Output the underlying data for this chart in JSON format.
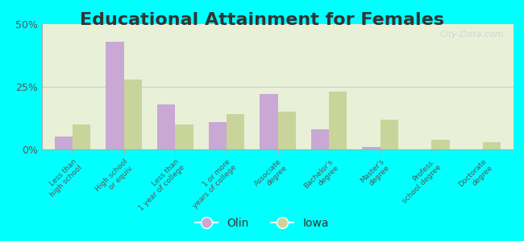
{
  "title": "Educational Attainment for Females",
  "categories": [
    "Less than\nhigh school",
    "High school\nor equiv.",
    "Less than\n1 year of college",
    "1 or more\nyears of college",
    "Associate\ndegree",
    "Bachelor's\ndegree",
    "Master's\ndegree",
    "Profess.\nschool degree",
    "Doctorate\ndegree"
  ],
  "olin_values": [
    5.0,
    43.0,
    18.0,
    11.0,
    22.0,
    8.0,
    1.0,
    0.0,
    0.0
  ],
  "iowa_values": [
    10.0,
    28.0,
    10.0,
    14.0,
    15.0,
    23.0,
    12.0,
    4.0,
    3.0
  ],
  "olin_color": "#c9a8d4",
  "iowa_color": "#c8d49a",
  "background_color": "#e8f0d8",
  "outer_background": "#00ffff",
  "ylim": [
    0,
    50
  ],
  "yticks": [
    0,
    25,
    50
  ],
  "ytick_labels": [
    "0%",
    "25%",
    "50%"
  ],
  "legend_labels": [
    "Olin",
    "Iowa"
  ],
  "title_fontsize": 16,
  "watermark": "City-Data.com"
}
